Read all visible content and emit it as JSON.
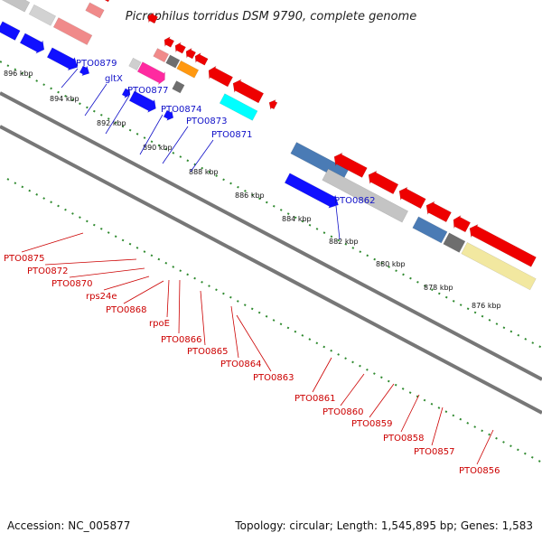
{
  "title": "Picrophilus torridus DSM 9790, complete genome",
  "footer": {
    "accession": "Accession: NC_005877",
    "summary": "Topology: circular; Length: 1,545,895 bp; Genes: 1,583"
  },
  "kbp_ticks": [
    "896 kbp",
    "894 kbp",
    "892 kbp",
    "890 kbp",
    "888 kbp",
    "886 kbp",
    "884 kbp",
    "882 kbp",
    "880 kbp",
    "878 kbp",
    "876 kbp"
  ],
  "top_labels": [
    "PTO0879",
    "gltX",
    "PTO0877",
    "PTO0874",
    "PTO0873",
    "PTO0871",
    "PTO0862"
  ],
  "bottom_labels": [
    "PTO0875",
    "PTO0872",
    "PTO0870",
    "rps24e",
    "PTO0868",
    "rpoE",
    "PTO0866",
    "PTO0865",
    "PTO0864",
    "PTO0863",
    "PTO0861",
    "PTO0860",
    "PTO0859",
    "PTO0858",
    "PTO0857",
    "PTO0856"
  ],
  "colors": {
    "forward_gene": "#1010ff",
    "reverse_gene": "#ee0000",
    "backbone": "#777777",
    "tick": "#2f8a2f",
    "label_top": "#1010c8",
    "label_bottom": "#cc0000"
  }
}
